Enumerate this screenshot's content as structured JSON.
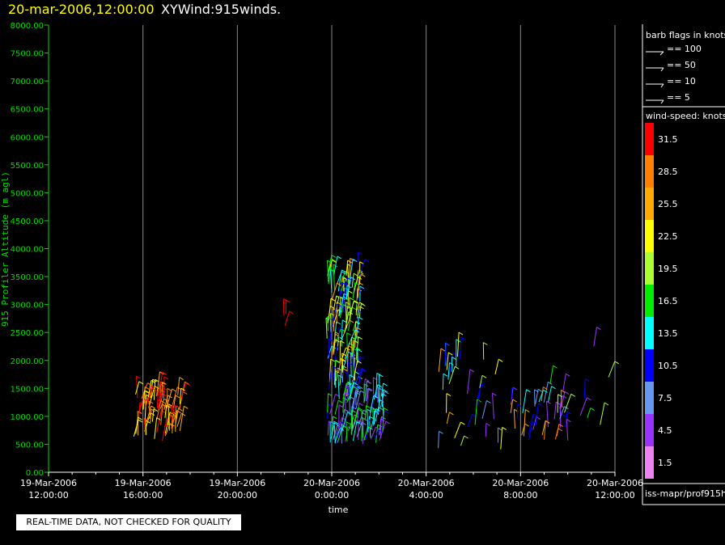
{
  "header": {
    "datetime": "20-mar-2006,12:00:00",
    "title": "XYWind:915winds."
  },
  "notice": "REAL-TIME DATA, NOT CHECKED FOR QUALITY",
  "footer_label": "iss-mapr/prof915h",
  "colors": {
    "title_datetime": "#ffff00",
    "axis_y": "#00dd00",
    "axis_x": "#ffffff",
    "grid": "#888888"
  },
  "chart_data": {
    "type": "scatter",
    "xlabel": "time",
    "ylabel": "915 Profiler Altitude (m agl)",
    "ylim": [
      0,
      8000
    ],
    "xlim": [
      "19-Mar-2006 12:00:00",
      "20-Mar-2006 12:00:00"
    ],
    "y_ticks": [
      "0.00",
      "500.00",
      "1000.00",
      "1500.00",
      "2000.00",
      "2500.00",
      "3000.00",
      "3500.00",
      "4000.00",
      "4500.00",
      "5000.00",
      "5500.00",
      "6000.00",
      "6500.00",
      "7000.00",
      "7500.00",
      "8000.00"
    ],
    "x_ticks": [
      {
        "date": "19-Mar-2006",
        "time": "12:00:00"
      },
      {
        "date": "19-Mar-2006",
        "time": "16:00:00"
      },
      {
        "date": "19-Mar-2006",
        "time": "20:00:00"
      },
      {
        "date": "20-Mar-2006",
        "time": "0:00:00"
      },
      {
        "date": "20-Mar-2006",
        "time": "4:00:00"
      },
      {
        "date": "20-Mar-2006",
        "time": "8:00:00"
      },
      {
        "date": "20-Mar-2006",
        "time": "12:00:00"
      }
    ],
    "grid": "vertical",
    "legend_barbs": {
      "title": "barb flags in knots",
      "entries": [
        "== 100",
        "== 50",
        "== 10",
        "== 5"
      ]
    },
    "legend_speed": {
      "title": "wind-speed: knots",
      "entries": [
        {
          "label": "31.5",
          "color": "#ff0000"
        },
        {
          "label": "28.5",
          "color": "#ff7f00"
        },
        {
          "label": "25.5",
          "color": "#ffaa00"
        },
        {
          "label": "22.5",
          "color": "#ffff00"
        },
        {
          "label": "19.5",
          "color": "#aaff33"
        },
        {
          "label": "16.5",
          "color": "#00ee00"
        },
        {
          "label": "13.5",
          "color": "#00ffff"
        },
        {
          "label": "10.5",
          "color": "#0000ff"
        },
        {
          "label": "7.5",
          "color": "#6699ee"
        },
        {
          "label": "4.5",
          "color": "#9933ff"
        },
        {
          "label": "1.5",
          "color": "#ee82ee"
        }
      ]
    },
    "clusters": [
      {
        "t0": 15.6,
        "t1": 17.6,
        "z0": 550,
        "z1": 1400,
        "n": 70,
        "speeds": [
          25.5,
          28.5,
          31.5,
          22.5
        ]
      },
      {
        "t0": 21.8,
        "t1": 22.1,
        "z0": 2600,
        "z1": 2950,
        "n": 3,
        "speeds": [
          31.5
        ]
      },
      {
        "t0": 23.8,
        "t1": 25.2,
        "z0": 1300,
        "z1": 3600,
        "n": 130,
        "speeds": [
          16.5,
          13.5,
          19.5,
          10.5,
          22.5,
          25.5
        ]
      },
      {
        "t0": 23.8,
        "t1": 26.2,
        "z0": 500,
        "z1": 1400,
        "n": 90,
        "speeds": [
          10.5,
          7.5,
          4.5,
          13.5,
          16.5
        ]
      },
      {
        "t0": 28.5,
        "t1": 31.2,
        "z0": 400,
        "z1": 2100,
        "n": 30,
        "speeds": [
          4.5,
          7.5,
          10.5,
          13.5,
          16.5,
          19.5,
          22.5,
          25.5
        ]
      },
      {
        "t0": 31.5,
        "t1": 33.8,
        "z0": 550,
        "z1": 1300,
        "n": 30,
        "speeds": [
          4.5,
          7.5,
          10.5,
          13.5,
          25.5,
          28.5
        ]
      },
      {
        "t0": 33.0,
        "t1": 35.9,
        "z0": 400,
        "z1": 2600,
        "n": 12,
        "speeds": [
          10.5,
          7.5,
          4.5,
          19.5,
          16.5
        ]
      }
    ]
  }
}
